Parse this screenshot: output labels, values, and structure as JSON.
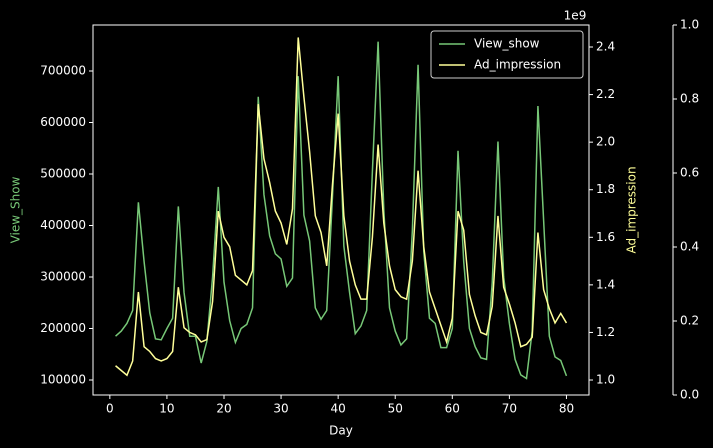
{
  "chart_data": {
    "type": "line",
    "xlabel": "Day",
    "ylabel": "View_Show",
    "y2label": "Ad_impression",
    "y2_offset": "1e9",
    "x": [
      1,
      2,
      3,
      4,
      5,
      6,
      7,
      8,
      9,
      10,
      11,
      12,
      13,
      14,
      15,
      16,
      17,
      18,
      19,
      20,
      21,
      22,
      23,
      24,
      25,
      26,
      27,
      28,
      29,
      30,
      31,
      32,
      33,
      34,
      35,
      36,
      37,
      38,
      39,
      40,
      41,
      42,
      43,
      44,
      45,
      46,
      47,
      48,
      49,
      50,
      51,
      52,
      53,
      54,
      55,
      56,
      57,
      58,
      59,
      60,
      61,
      62,
      63,
      64,
      65,
      66,
      67,
      68,
      69,
      70,
      71,
      72,
      73,
      74,
      75,
      76,
      77,
      78,
      79,
      80
    ],
    "series": [
      {
        "name": "View_show",
        "color": "#77c777",
        "axis": "y",
        "values": [
          185000,
          195000,
          210000,
          235000,
          445000,
          330000,
          230000,
          180000,
          178000,
          200000,
          220000,
          437000,
          270000,
          185000,
          185000,
          133000,
          175000,
          300000,
          475000,
          290000,
          215000,
          173000,
          200000,
          208000,
          240000,
          650000,
          460000,
          380000,
          345000,
          335000,
          282000,
          298000,
          690000,
          420000,
          370000,
          240000,
          218000,
          235000,
          455000,
          690000,
          360000,
          270000,
          190000,
          205000,
          235000,
          505000,
          757000,
          430000,
          240000,
          195000,
          168000,
          180000,
          390000,
          712000,
          350000,
          220000,
          210000,
          163000,
          163000,
          200000,
          545000,
          330000,
          200000,
          165000,
          143000,
          140000,
          290000,
          563000,
          300000,
          210000,
          140000,
          110000,
          103000,
          195000,
          632000,
          410000,
          185000,
          145000,
          138000,
          108000
        ]
      },
      {
        "name": "Ad_impression",
        "color": "#ffff99",
        "axis": "y2",
        "values": [
          1.06,
          1.04,
          1.02,
          1.08,
          1.37,
          1.14,
          1.12,
          1.09,
          1.08,
          1.09,
          1.12,
          1.39,
          1.22,
          1.2,
          1.19,
          1.16,
          1.17,
          1.33,
          1.71,
          1.6,
          1.56,
          1.44,
          1.42,
          1.4,
          1.46,
          2.16,
          1.93,
          1.83,
          1.71,
          1.66,
          1.57,
          1.72,
          2.44,
          2.19,
          1.96,
          1.69,
          1.62,
          1.48,
          1.82,
          2.12,
          1.69,
          1.5,
          1.4,
          1.34,
          1.34,
          1.6,
          1.99,
          1.66,
          1.48,
          1.38,
          1.35,
          1.34,
          1.5,
          1.88,
          1.56,
          1.37,
          1.3,
          1.23,
          1.16,
          1.26,
          1.71,
          1.63,
          1.36,
          1.27,
          1.2,
          1.19,
          1.31,
          1.69,
          1.39,
          1.32,
          1.24,
          1.14,
          1.15,
          1.18,
          1.62,
          1.38,
          1.3,
          1.24,
          1.28,
          1.24
        ]
      }
    ],
    "xlim": [
      -2.95,
      83.95
    ],
    "xticks": [
      0,
      10,
      20,
      30,
      40,
      50,
      60,
      70,
      80
    ],
    "ylim": [
      70900,
      789300
    ],
    "yticks": [
      100000,
      200000,
      300000,
      400000,
      500000,
      600000,
      700000
    ],
    "y2lim": [
      0.937,
      2.4925
    ],
    "y2ticks": [
      {
        "value": 1.0,
        "label": "1.0"
      },
      1.2,
      1.4,
      1.6,
      1.8,
      {
        "value": 2.0,
        "label": "2.0"
      },
      2.2,
      2.4
    ],
    "y3lim": [
      0,
      1
    ],
    "y3ticks": [
      {
        "value": 0,
        "label": "0.0"
      },
      0.2,
      0.4,
      0.6,
      0.8,
      {
        "value": 1,
        "label": "1.0"
      }
    ],
    "legend": "upper right"
  }
}
